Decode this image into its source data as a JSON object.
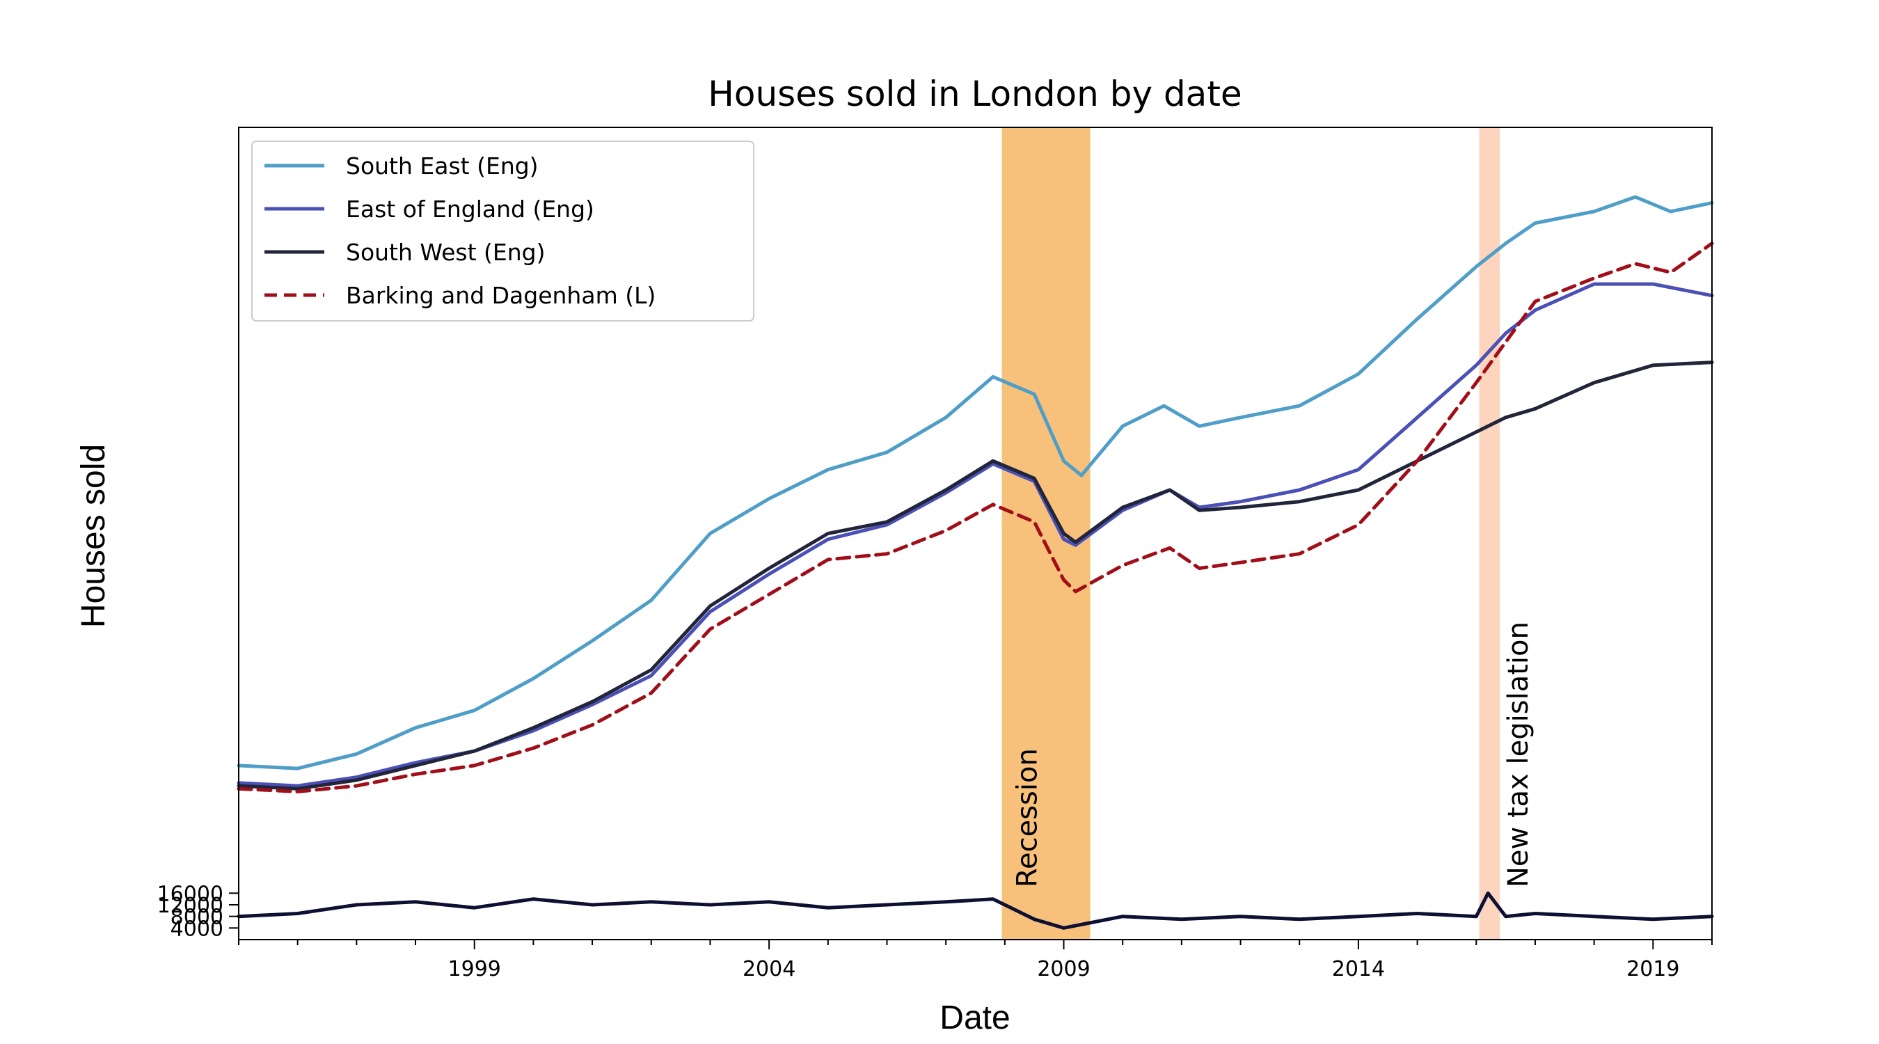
{
  "chart_data": {
    "type": "line",
    "title": "Houses sold in London by date",
    "xlabel": "Date",
    "ylabel": "Houses sold",
    "x_ticks": [
      "1999",
      "2004",
      "2009",
      "2014",
      "2019"
    ],
    "y_ticks": [
      "4000",
      "8000",
      "12000",
      "16000"
    ],
    "xlim": [
      1995.0,
      2020.0
    ],
    "ylim": [
      0,
      280000
    ],
    "legend_placement": "upper-left",
    "grid": false,
    "series": [
      {
        "name": "South East (Eng)",
        "color": "#4f9ec8",
        "style": "solid",
        "points": [
          [
            1995.0,
            60000
          ],
          [
            1996.0,
            59000
          ],
          [
            1997.0,
            64000
          ],
          [
            1998.0,
            73000
          ],
          [
            1999.0,
            79000
          ],
          [
            2000.0,
            90000
          ],
          [
            2001.0,
            103000
          ],
          [
            2002.0,
            117000
          ],
          [
            2003.0,
            140000
          ],
          [
            2004.0,
            152000
          ],
          [
            2005.0,
            162000
          ],
          [
            2006.0,
            168000
          ],
          [
            2007.0,
            180000
          ],
          [
            2007.8,
            194000
          ],
          [
            2008.5,
            188000
          ],
          [
            2009.0,
            165000
          ],
          [
            2009.3,
            160000
          ],
          [
            2010.0,
            177000
          ],
          [
            2010.7,
            184000
          ],
          [
            2011.3,
            177000
          ],
          [
            2012.0,
            180000
          ],
          [
            2013.0,
            184000
          ],
          [
            2014.0,
            195000
          ],
          [
            2015.0,
            214000
          ],
          [
            2016.0,
            232000
          ],
          [
            2016.5,
            240000
          ],
          [
            2017.0,
            247000
          ],
          [
            2018.0,
            251000
          ],
          [
            2018.7,
            256000
          ],
          [
            2019.3,
            251000
          ],
          [
            2020.0,
            254000
          ]
        ]
      },
      {
        "name": "East of England (Eng)",
        "color": "#4a50b5",
        "style": "solid",
        "points": [
          [
            1995.0,
            54000
          ],
          [
            1996.0,
            53000
          ],
          [
            1997.0,
            56000
          ],
          [
            1998.0,
            61000
          ],
          [
            1999.0,
            65000
          ],
          [
            2000.0,
            72000
          ],
          [
            2001.0,
            81000
          ],
          [
            2002.0,
            91000
          ],
          [
            2003.0,
            113000
          ],
          [
            2004.0,
            126000
          ],
          [
            2005.0,
            138000
          ],
          [
            2006.0,
            143000
          ],
          [
            2007.0,
            154000
          ],
          [
            2007.8,
            164000
          ],
          [
            2008.5,
            158000
          ],
          [
            2009.0,
            138000
          ],
          [
            2009.2,
            136000
          ],
          [
            2010.0,
            148000
          ],
          [
            2010.8,
            155000
          ],
          [
            2011.3,
            149000
          ],
          [
            2012.0,
            151000
          ],
          [
            2013.0,
            155000
          ],
          [
            2014.0,
            162000
          ],
          [
            2015.0,
            180000
          ],
          [
            2016.0,
            198000
          ],
          [
            2016.5,
            209000
          ],
          [
            2017.0,
            217000
          ],
          [
            2018.0,
            226000
          ],
          [
            2019.0,
            226000
          ],
          [
            2020.0,
            222000
          ]
        ]
      },
      {
        "name": "South West (Eng)",
        "color": "#22243a",
        "style": "solid",
        "points": [
          [
            1995.0,
            53000
          ],
          [
            1996.0,
            52000
          ],
          [
            1997.0,
            55000
          ],
          [
            1998.0,
            60000
          ],
          [
            1999.0,
            65000
          ],
          [
            2000.0,
            73000
          ],
          [
            2001.0,
            82000
          ],
          [
            2002.0,
            93000
          ],
          [
            2003.0,
            115000
          ],
          [
            2004.0,
            128000
          ],
          [
            2005.0,
            140000
          ],
          [
            2006.0,
            144000
          ],
          [
            2007.0,
            155000
          ],
          [
            2007.8,
            165000
          ],
          [
            2008.5,
            159000
          ],
          [
            2009.0,
            140000
          ],
          [
            2009.2,
            137000
          ],
          [
            2010.0,
            149000
          ],
          [
            2010.8,
            155000
          ],
          [
            2011.3,
            148000
          ],
          [
            2012.0,
            149000
          ],
          [
            2013.0,
            151000
          ],
          [
            2014.0,
            155000
          ],
          [
            2015.0,
            165000
          ],
          [
            2016.0,
            175000
          ],
          [
            2016.5,
            180000
          ],
          [
            2017.0,
            183000
          ],
          [
            2018.0,
            192000
          ],
          [
            2019.0,
            198000
          ],
          [
            2020.0,
            199000
          ]
        ]
      },
      {
        "name": "Barking and Dagenham (L)",
        "color": "#a00f19",
        "style": "dashed",
        "points": [
          [
            1995.0,
            52000
          ],
          [
            1996.0,
            51000
          ],
          [
            1997.0,
            53000
          ],
          [
            1998.0,
            57000
          ],
          [
            1999.0,
            60000
          ],
          [
            2000.0,
            66000
          ],
          [
            2001.0,
            74000
          ],
          [
            2002.0,
            85000
          ],
          [
            2003.0,
            107000
          ],
          [
            2004.0,
            119000
          ],
          [
            2005.0,
            131000
          ],
          [
            2006.0,
            133000
          ],
          [
            2007.0,
            141000
          ],
          [
            2007.8,
            150000
          ],
          [
            2008.5,
            144000
          ],
          [
            2009.0,
            124000
          ],
          [
            2009.2,
            120000
          ],
          [
            2010.0,
            129000
          ],
          [
            2010.8,
            135000
          ],
          [
            2011.3,
            128000
          ],
          [
            2012.0,
            130000
          ],
          [
            2013.0,
            133000
          ],
          [
            2014.0,
            143000
          ],
          [
            2015.0,
            165000
          ],
          [
            2016.0,
            192000
          ],
          [
            2016.5,
            206000
          ],
          [
            2017.0,
            220000
          ],
          [
            2018.0,
            228000
          ],
          [
            2018.7,
            233000
          ],
          [
            2019.3,
            230000
          ],
          [
            2020.0,
            240000
          ]
        ]
      },
      {
        "name": "",
        "color": "#0d1033",
        "style": "solid",
        "points": [
          [
            1995.0,
            8000
          ],
          [
            1996.0,
            9000
          ],
          [
            1997.0,
            12000
          ],
          [
            1998.0,
            13000
          ],
          [
            1999.0,
            11000
          ],
          [
            2000.0,
            14000
          ],
          [
            2001.0,
            12000
          ],
          [
            2002.0,
            13000
          ],
          [
            2003.0,
            12000
          ],
          [
            2004.0,
            13000
          ],
          [
            2005.0,
            11000
          ],
          [
            2006.0,
            12000
          ],
          [
            2007.0,
            13000
          ],
          [
            2007.8,
            14000
          ],
          [
            2008.5,
            7000
          ],
          [
            2009.0,
            4000
          ],
          [
            2009.5,
            6000
          ],
          [
            2010.0,
            8000
          ],
          [
            2011.0,
            7000
          ],
          [
            2012.0,
            8000
          ],
          [
            2013.0,
            7000
          ],
          [
            2014.0,
            8000
          ],
          [
            2015.0,
            9000
          ],
          [
            2016.0,
            8000
          ],
          [
            2016.2,
            16000
          ],
          [
            2016.5,
            8000
          ],
          [
            2017.0,
            9000
          ],
          [
            2018.0,
            8000
          ],
          [
            2019.0,
            7000
          ],
          [
            2020.0,
            8000
          ]
        ]
      }
    ],
    "annotations": [
      {
        "label": "Recession",
        "x0": 2007.95,
        "x1": 2009.45,
        "color": "#f5b25a",
        "opacity": 0.8
      },
      {
        "label": "New tax legislation",
        "x0": 2016.05,
        "x1": 2016.4,
        "color": "#fbb893",
        "opacity": 0.6
      }
    ]
  }
}
